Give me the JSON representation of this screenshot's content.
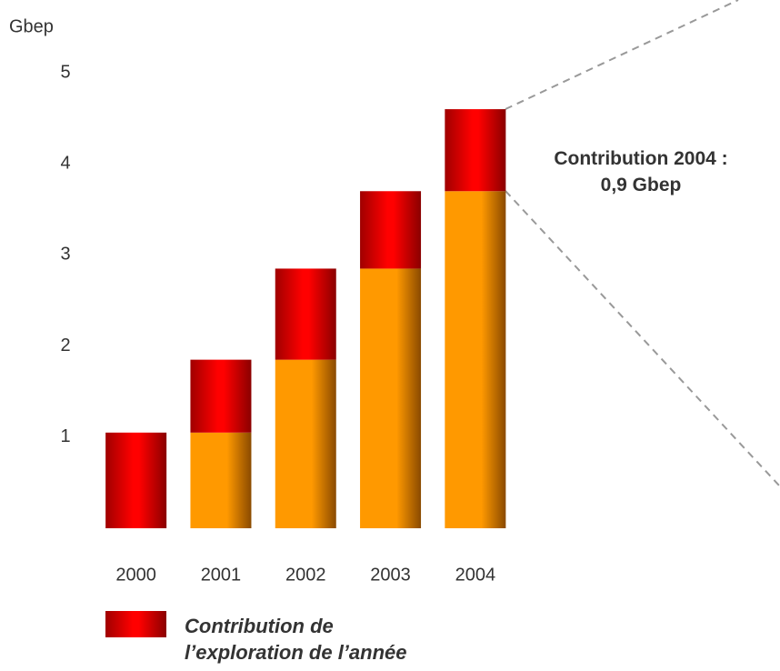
{
  "chart_data": {
    "type": "stacked_bar",
    "ylabel": "Gbep",
    "categories": [
      "2000",
      "2001",
      "2002",
      "2003",
      "2004"
    ],
    "series": [
      {
        "color": "#ff9900",
        "values": [
          0,
          1.05,
          1.85,
          2.85,
          3.7
        ]
      },
      {
        "name": "Contribution de\nl’exploration de l’année",
        "color": "#ff0000",
        "values": [
          1.05,
          0.8,
          1.0,
          0.85,
          0.9
        ]
      }
    ],
    "ylim": [
      0,
      5
    ],
    "yticks": [
      1,
      2,
      3,
      4,
      5
    ],
    "annotation": "Contribution 2004 :\n0,9 Gbep",
    "grid": false
  }
}
